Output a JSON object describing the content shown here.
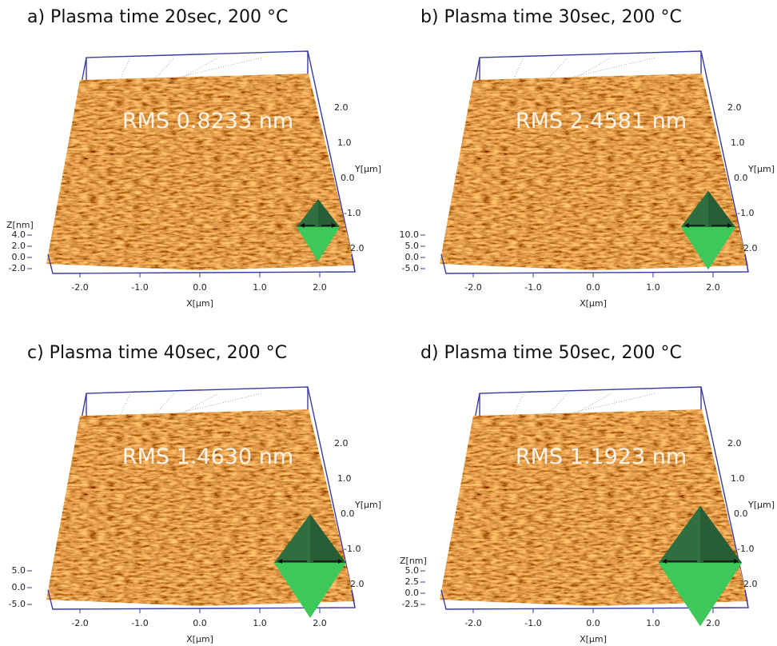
{
  "panels": [
    {
      "title": "a) Plasma time 20sec, 200 °C",
      "rms": "RMS  0.8233 nm",
      "z_label": "Z[nm]",
      "z_ticks": [
        "4.0",
        "2.0",
        "0.0",
        "-2.0"
      ],
      "x_ticks": [
        "-2.0",
        "-1.0",
        "0.0",
        "1.0",
        "2.0"
      ],
      "x_label": "X[μm]",
      "y_ticks": [
        "2.0",
        "1.0",
        "0.0",
        "-1.0",
        "-2.0"
      ],
      "y_label": "Y[μm]"
    },
    {
      "title": "b) Plasma time 30sec, 200 °C",
      "rms": "RMS  2.4581 nm",
      "z_ticks": [
        "10.0",
        "5.0",
        "0.0",
        "-5.0"
      ],
      "x_ticks": [
        "-2.0",
        "-1.0",
        "0.0",
        "1.0",
        "2.0"
      ],
      "x_label": "X[μm]",
      "y_ticks": [
        "2.0",
        "1.0",
        "0.0",
        "-1.0",
        "-2.0"
      ],
      "y_label": "Y[μm]"
    },
    {
      "title": "c) Plasma time 40sec, 200 °C",
      "rms": "RMS  1.4630 nm",
      "z_ticks": [
        "5.0",
        "0.0",
        "-5.0"
      ],
      "x_ticks": [
        "-2.0",
        "-1.0",
        "0.0",
        "1.0",
        "2.0"
      ],
      "x_label": "X[μm]",
      "y_ticks": [
        "2.0",
        "1.0",
        "0.0",
        "-1.0",
        "-2.0"
      ],
      "y_label": "Y[μm]"
    },
    {
      "title": "d) Plasma time 50sec, 200 °C",
      "rms": "RMS  1.1923 nm",
      "z_label": "Z[nm]",
      "z_ticks": [
        "5.0",
        "2.5",
        "0.0",
        "-2.5"
      ],
      "x_ticks": [
        "-2.0",
        "-1.0",
        "0.0",
        "1.0",
        "2.0"
      ],
      "x_label": "X[μm]",
      "y_ticks": [
        "2.0",
        "1.0",
        "0.0",
        "-1.0",
        "-2.0"
      ],
      "y_label": "Y[μm]"
    }
  ]
}
